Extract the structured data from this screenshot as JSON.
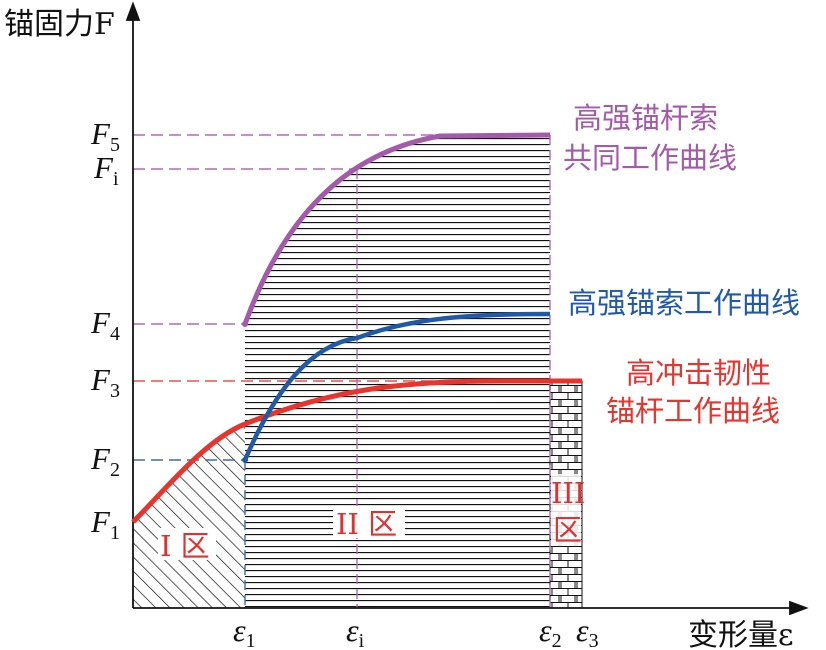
{
  "axes": {
    "y_title": "锚固力F",
    "x_title": "变形量ε"
  },
  "y_ticks": [
    {
      "main": "F",
      "sub": "5"
    },
    {
      "main": "F",
      "sub": "i"
    },
    {
      "main": "F",
      "sub": "4"
    },
    {
      "main": "F",
      "sub": "3"
    },
    {
      "main": "F",
      "sub": "2"
    },
    {
      "main": "F",
      "sub": "1"
    }
  ],
  "x_ticks": [
    {
      "main": "ε",
      "sub": "1"
    },
    {
      "main": "ε",
      "sub": "i"
    },
    {
      "main": "ε",
      "sub": "2"
    },
    {
      "main": "ε",
      "sub": "3"
    }
  ],
  "curves": {
    "combined": {
      "line1": "高强锚杆索",
      "line2": "共同工作曲线",
      "color": "#a45aab"
    },
    "cable": {
      "line1": "高强锚索工作曲线",
      "color": "#1f5aa8"
    },
    "bolt": {
      "line1": "高冲击韧性",
      "line2": "锚杆工作曲线",
      "color": "#e8342c"
    }
  },
  "zones": {
    "zone1": "I 区",
    "zone2": "II 区",
    "zone3_top": "III",
    "zone3_bottom": "区"
  }
}
